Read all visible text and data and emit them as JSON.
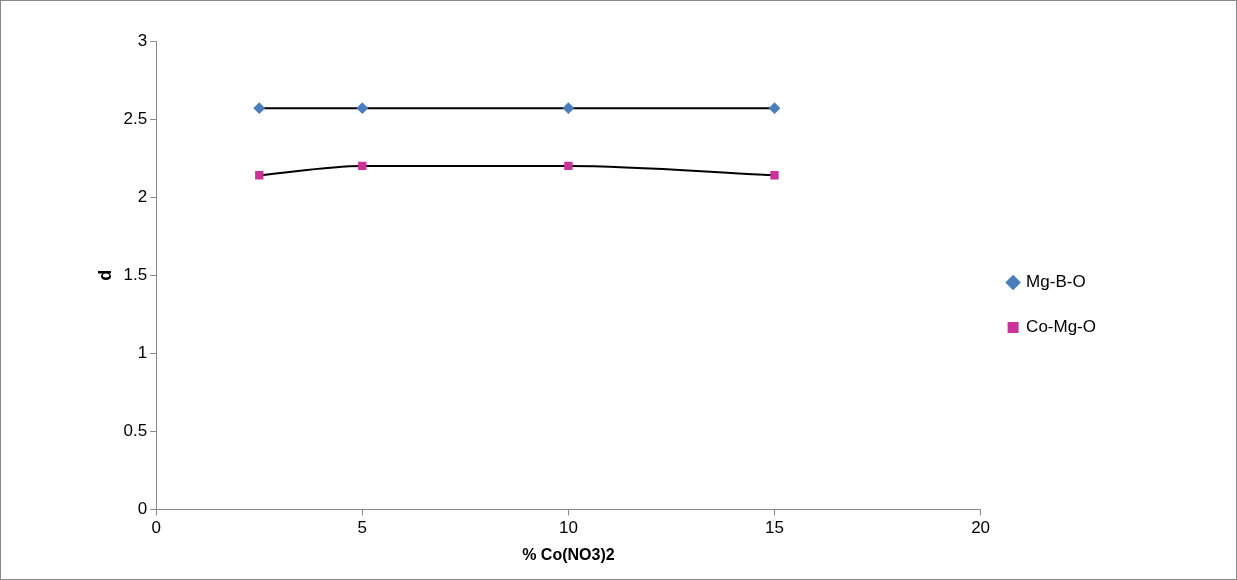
{
  "chart_data": {
    "type": "line",
    "xlabel": "% Co(NO3)2",
    "ylabel": "d",
    "x": [
      2.5,
      5,
      10,
      15
    ],
    "series": [
      {
        "name": "Mg-B-O",
        "color": "#4a7ebb",
        "marker": "diamond",
        "values": [
          2.57,
          2.57,
          2.57,
          2.57
        ]
      },
      {
        "name": "Co-Mg-O",
        "color": "#cc3399",
        "marker": "square",
        "values": [
          2.14,
          2.2,
          2.2,
          2.14
        ]
      }
    ],
    "xlim": [
      0,
      20
    ],
    "xticks": [
      0,
      5,
      10,
      15,
      20
    ],
    "ylim": [
      0,
      3
    ],
    "yticks": [
      0,
      0.5,
      1,
      1.5,
      2,
      2.5,
      3
    ],
    "grid": false,
    "legend": "right",
    "line_style": "solid"
  }
}
